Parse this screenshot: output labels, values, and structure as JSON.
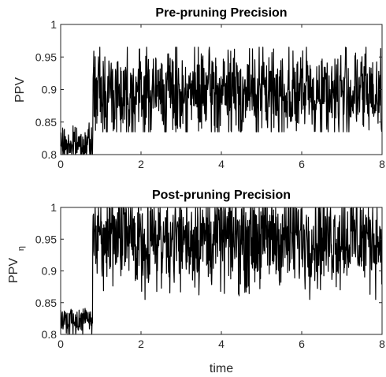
{
  "chart_data": [
    {
      "type": "line",
      "title": "Pre-pruning Precision",
      "xlabel": "",
      "ylabel": "PPV",
      "ylabel_subscript": "",
      "xlim": [
        0,
        8
      ],
      "ylim": [
        0.8,
        1
      ],
      "xticks": [
        "0",
        "2",
        "4",
        "6",
        "8"
      ],
      "yticks": [
        "0.8",
        "0.85",
        "0.9",
        "0.95",
        "1"
      ],
      "grid": false,
      "series": [
        {
          "color": "#000000",
          "segments": [
            {
              "x_start": 0,
              "x_end": 0.8,
              "mean": 0.815,
              "min": 0.8,
              "max": 0.85
            },
            {
              "x_start": 0.8,
              "x_end": 8,
              "mean": 0.895,
              "min": 0.835,
              "max": 0.965
            }
          ]
        }
      ]
    },
    {
      "type": "line",
      "title": "Post-pruning Precision",
      "xlabel": "time",
      "ylabel": "PPV",
      "ylabel_subscript": "η",
      "xlim": [
        0,
        8
      ],
      "ylim": [
        0.8,
        1
      ],
      "xticks": [
        "0",
        "2",
        "4",
        "6",
        "8"
      ],
      "yticks": [
        "0.8",
        "0.85",
        "0.9",
        "0.95",
        "1"
      ],
      "grid": false,
      "series": [
        {
          "color": "#000000",
          "segments": [
            {
              "x_start": 0,
              "x_end": 0.8,
              "mean": 0.822,
              "min": 0.8,
              "max": 0.845
            },
            {
              "x_start": 0.8,
              "x_end": 8,
              "mean": 0.952,
              "min": 0.855,
              "max": 1.0
            }
          ]
        }
      ]
    }
  ]
}
